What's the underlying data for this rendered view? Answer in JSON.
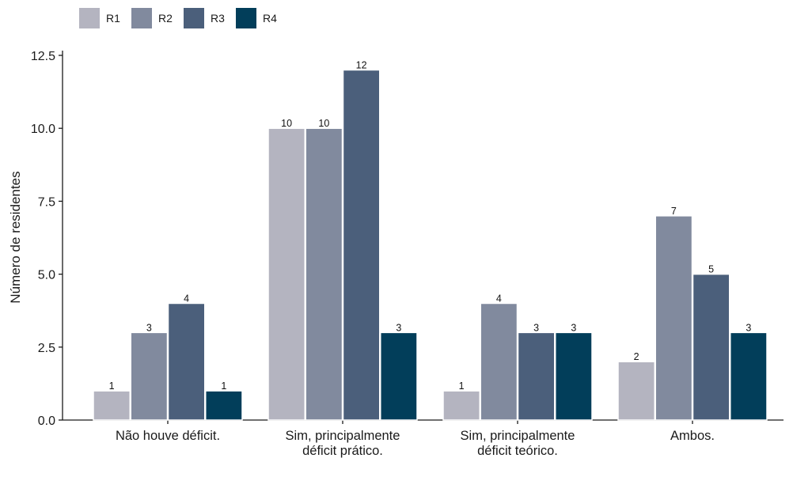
{
  "chart_data": {
    "type": "bar",
    "title": "",
    "xlabel": "",
    "ylabel": "Número de residentes",
    "ylim": [
      0,
      12.5
    ],
    "yticks": [
      0.0,
      2.5,
      5.0,
      7.5,
      10.0,
      12.5
    ],
    "ytick_labels": [
      "0.0",
      "2.5",
      "5.0",
      "7.5",
      "10.0",
      "12.5"
    ],
    "categories": [
      "Não houve déficit.",
      "Sim, principalmente déficit prático.",
      "Sim, principalmente déficit teórico.",
      "Ambos."
    ],
    "category_lines": [
      [
        "Não houve déficit."
      ],
      [
        "Sim, principalmente",
        "déficit prático."
      ],
      [
        "Sim, principalmente",
        "déficit teórico."
      ],
      [
        "Ambos."
      ]
    ],
    "series": [
      {
        "name": "R1",
        "color": "#b4b4c0",
        "values": [
          1,
          10,
          1,
          2
        ]
      },
      {
        "name": "R2",
        "color": "#818a9e",
        "values": [
          3,
          10,
          4,
          7
        ]
      },
      {
        "name": "R3",
        "color": "#4b5f7b",
        "values": [
          4,
          12,
          3,
          5
        ]
      },
      {
        "name": "R4",
        "color": "#023e5a",
        "values": [
          1,
          3,
          3,
          3
        ]
      }
    ],
    "legend_position": "top-left",
    "grid": false,
    "data_labels": true
  }
}
